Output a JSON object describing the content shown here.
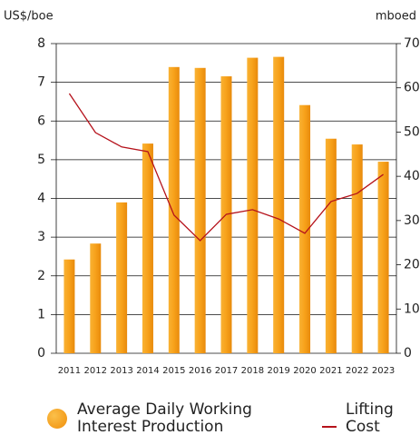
{
  "chart_data": {
    "type": "bar_line",
    "y_label": "US$/boe",
    "y2_label": "mboed",
    "categories": [
      "2011",
      "2012",
      "2013",
      "2014",
      "2015",
      "2016",
      "2017",
      "2018",
      "2019",
      "2020",
      "2021",
      "2022",
      "2023"
    ],
    "series": [
      {
        "name": "Average Daily Working Interest Production",
        "type": "bar",
        "axis": "y2",
        "color": "#f7a11a",
        "values": [
          21.2,
          24.8,
          34.1,
          47.4,
          64.7,
          64.5,
          62.6,
          66.8,
          67.0,
          56.1,
          48.5,
          47.2,
          43.3
        ]
      },
      {
        "name": "Lifting Cost",
        "type": "line",
        "axis": "y",
        "color": "#b5121b",
        "values": [
          6.71,
          5.7,
          5.33,
          5.21,
          3.57,
          2.91,
          3.59,
          3.71,
          3.47,
          3.1,
          3.92,
          4.13,
          4.62
        ]
      }
    ],
    "ylim": [
      0,
      8
    ],
    "yticks": [
      0,
      1,
      2,
      3,
      4,
      5,
      6,
      7,
      8
    ],
    "y2lim": [
      0,
      70
    ],
    "y2ticks": [
      0,
      10,
      20,
      30,
      40,
      50,
      60,
      70
    ],
    "grid": true
  }
}
